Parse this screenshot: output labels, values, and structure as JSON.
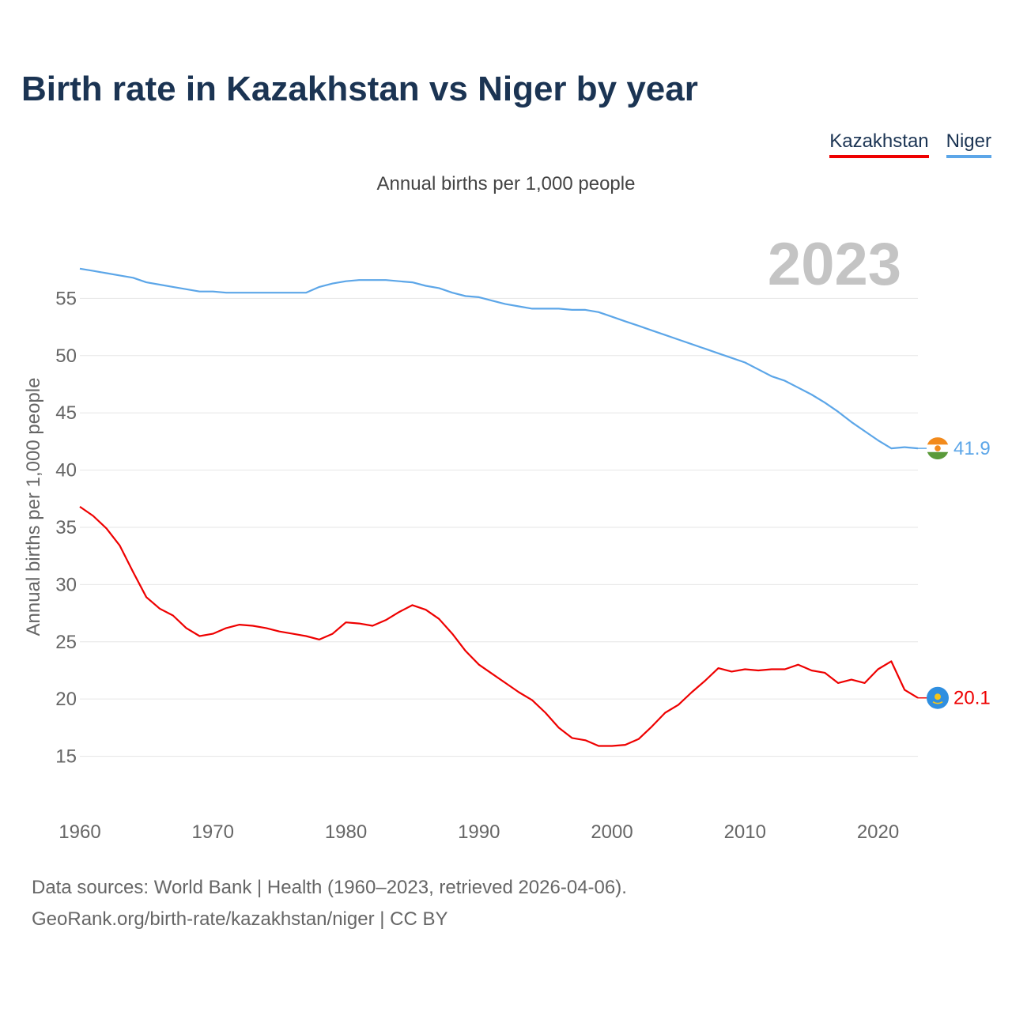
{
  "title": "Birth rate in Kazakhstan vs Niger by year",
  "legend": [
    {
      "label": "Kazakhstan",
      "color": "#ee0000"
    },
    {
      "label": "Niger",
      "color": "#5ca6e8"
    }
  ],
  "footer": {
    "line1": "Data sources: World Bank | Health (1960–2023, retrieved 2026-04-06).",
    "line2": "GeoRank.org/birth-rate/kazakhstan/niger | CC BY"
  },
  "chart_data": {
    "type": "line",
    "title": "Annual births per 1,000 people",
    "xlabel": "",
    "ylabel": "Annual births per 1,000 people",
    "year_label": "2023",
    "xlim": [
      1960,
      2023
    ],
    "ylim": [
      12,
      60
    ],
    "x_ticks": [
      1960,
      1970,
      1980,
      1990,
      2000,
      2010,
      2020
    ],
    "y_ticks": [
      15,
      20,
      25,
      30,
      35,
      40,
      45,
      50,
      55
    ],
    "grid": true,
    "series": [
      {
        "name": "Kazakhstan",
        "color": "#ee0000",
        "flag": "kazakhstan-flag",
        "end_label": "20.1",
        "x": [
          1960,
          1961,
          1962,
          1963,
          1964,
          1965,
          1966,
          1967,
          1968,
          1969,
          1970,
          1971,
          1972,
          1973,
          1974,
          1975,
          1976,
          1977,
          1978,
          1979,
          1980,
          1981,
          1982,
          1983,
          1984,
          1985,
          1986,
          1987,
          1988,
          1989,
          1990,
          1991,
          1992,
          1993,
          1994,
          1995,
          1996,
          1997,
          1998,
          1999,
          2000,
          2001,
          2002,
          2003,
          2004,
          2005,
          2006,
          2007,
          2008,
          2009,
          2010,
          2011,
          2012,
          2013,
          2014,
          2015,
          2016,
          2017,
          2018,
          2019,
          2020,
          2021,
          2022,
          2023
        ],
        "values": [
          36.8,
          36.0,
          34.9,
          33.4,
          31.1,
          28.9,
          27.9,
          27.3,
          26.2,
          25.5,
          25.7,
          26.2,
          26.5,
          26.4,
          26.2,
          25.9,
          25.7,
          25.5,
          25.2,
          25.7,
          26.7,
          26.6,
          26.4,
          26.9,
          27.6,
          28.2,
          27.8,
          27.0,
          25.7,
          24.2,
          23.0,
          22.2,
          21.4,
          20.6,
          19.9,
          18.8,
          17.5,
          16.6,
          16.4,
          15.9,
          15.9,
          16.0,
          16.5,
          17.6,
          18.8,
          19.5,
          20.6,
          21.6,
          22.7,
          22.4,
          22.6,
          22.5,
          22.6,
          22.6,
          23.0,
          22.5,
          22.3,
          21.4,
          21.7,
          21.4,
          22.6,
          23.3,
          20.8,
          20.1
        ]
      },
      {
        "name": "Niger",
        "color": "#5ca6e8",
        "flag": "niger-flag",
        "end_label": "41.9",
        "x": [
          1960,
          1961,
          1962,
          1963,
          1964,
          1965,
          1966,
          1967,
          1968,
          1969,
          1970,
          1971,
          1972,
          1973,
          1974,
          1975,
          1976,
          1977,
          1978,
          1979,
          1980,
          1981,
          1982,
          1983,
          1984,
          1985,
          1986,
          1987,
          1988,
          1989,
          1990,
          1991,
          1992,
          1993,
          1994,
          1995,
          1996,
          1997,
          1998,
          1999,
          2000,
          2001,
          2002,
          2003,
          2004,
          2005,
          2006,
          2007,
          2008,
          2009,
          2010,
          2011,
          2012,
          2013,
          2014,
          2015,
          2016,
          2017,
          2018,
          2019,
          2020,
          2021,
          2022,
          2023
        ],
        "values": [
          57.6,
          57.4,
          57.2,
          57.0,
          56.8,
          56.4,
          56.2,
          56.0,
          55.8,
          55.6,
          55.6,
          55.5,
          55.5,
          55.5,
          55.5,
          55.5,
          55.5,
          55.5,
          56.0,
          56.3,
          56.5,
          56.6,
          56.6,
          56.6,
          56.5,
          56.4,
          56.1,
          55.9,
          55.5,
          55.2,
          55.1,
          54.8,
          54.5,
          54.3,
          54.1,
          54.1,
          54.1,
          54.0,
          54.0,
          53.8,
          53.4,
          53.0,
          52.6,
          52.2,
          51.8,
          51.4,
          51.0,
          50.6,
          50.2,
          49.8,
          49.4,
          48.8,
          48.2,
          47.8,
          47.2,
          46.6,
          45.9,
          45.1,
          44.2,
          43.4,
          42.6,
          41.9,
          42.0,
          41.9
        ]
      }
    ]
  }
}
